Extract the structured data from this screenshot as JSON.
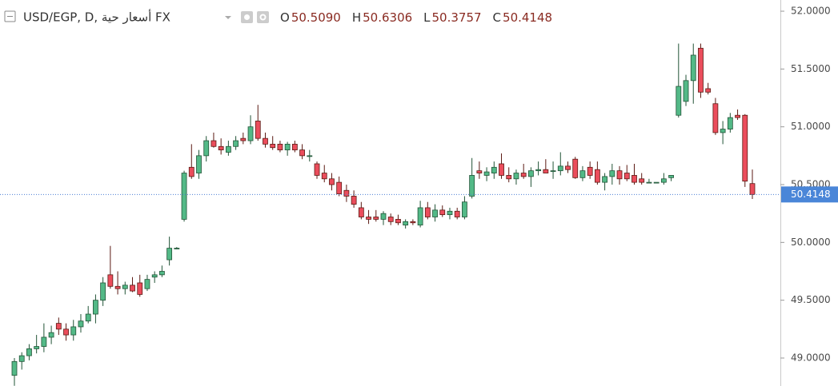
{
  "chart_data": {
    "type": "candlestick",
    "title": "USD/EGP, D, أسعار حية FX",
    "legend": {
      "open_label": "O",
      "open": "50.5090",
      "high_label": "H",
      "high": "50.6306",
      "low_label": "L",
      "low": "50.3757",
      "close_label": "C",
      "close": "50.4148"
    },
    "up_color": "#53b987",
    "down_color": "#eb4d5c",
    "up_border": "#225437",
    "down_border": "#5b1a13",
    "ylim": [
      48.758,
      52.097
    ],
    "yticks": [
      {
        "value": 49,
        "label": "49.0000"
      },
      {
        "value": 49.5,
        "label": "49.5000"
      },
      {
        "value": 50,
        "label": "50.0000"
      },
      {
        "value": 50.5,
        "label": "50.5000"
      },
      {
        "value": 51,
        "label": "51.0000"
      },
      {
        "value": 51.5,
        "label": "51.5000"
      },
      {
        "value": 52,
        "label": "52.0000"
      }
    ],
    "last_price": {
      "value": 50.4148,
      "label": "50.4148"
    },
    "ohlc": [
      [
        48.85,
        49.0,
        48.76,
        48.97
      ],
      [
        48.97,
        49.05,
        48.9,
        49.02
      ],
      [
        49.02,
        49.12,
        48.98,
        49.08
      ],
      [
        49.08,
        49.2,
        49.04,
        49.1
      ],
      [
        49.1,
        49.3,
        49.05,
        49.18
      ],
      [
        49.18,
        49.28,
        49.12,
        49.22
      ],
      [
        49.3,
        49.35,
        49.2,
        49.25
      ],
      [
        49.25,
        49.3,
        49.15,
        49.2
      ],
      [
        49.2,
        49.33,
        49.15,
        49.27
      ],
      [
        49.27,
        49.38,
        49.22,
        49.32
      ],
      [
        49.32,
        49.45,
        49.3,
        49.38
      ],
      [
        49.38,
        49.55,
        49.3,
        49.5
      ],
      [
        49.5,
        49.7,
        49.45,
        49.65
      ],
      [
        49.72,
        49.97,
        49.6,
        49.62
      ],
      [
        49.62,
        49.75,
        49.55,
        49.6
      ],
      [
        49.6,
        49.66,
        49.55,
        49.63
      ],
      [
        49.63,
        49.7,
        49.57,
        49.58
      ],
      [
        49.65,
        49.72,
        49.53,
        49.55
      ],
      [
        49.6,
        49.72,
        49.58,
        49.68
      ],
      [
        49.7,
        49.75,
        49.65,
        49.72
      ],
      [
        49.72,
        49.8,
        49.7,
        49.75
      ],
      [
        49.85,
        50.05,
        49.8,
        49.95
      ],
      [
        49.95,
        49.96,
        49.94,
        49.95
      ],
      [
        50.2,
        50.62,
        50.18,
        50.6
      ],
      [
        50.65,
        50.85,
        50.55,
        50.57
      ],
      [
        50.6,
        50.8,
        50.55,
        50.75
      ],
      [
        50.75,
        50.92,
        50.7,
        50.88
      ],
      [
        50.88,
        50.95,
        50.82,
        50.83
      ],
      [
        50.83,
        50.9,
        50.76,
        50.8
      ],
      [
        50.78,
        50.88,
        50.75,
        50.83
      ],
      [
        50.83,
        50.92,
        50.8,
        50.88
      ],
      [
        50.9,
        50.95,
        50.85,
        50.88
      ],
      [
        50.88,
        51.1,
        50.85,
        51.0
      ],
      [
        51.05,
        51.19,
        50.88,
        50.9
      ],
      [
        50.9,
        50.95,
        50.82,
        50.85
      ],
      [
        50.85,
        50.92,
        50.8,
        50.82
      ],
      [
        50.85,
        50.88,
        50.78,
        50.8
      ],
      [
        50.8,
        50.87,
        50.75,
        50.85
      ],
      [
        50.85,
        50.88,
        50.78,
        50.8
      ],
      [
        50.8,
        50.85,
        50.72,
        50.75
      ],
      [
        50.75,
        50.8,
        50.7,
        50.75
      ],
      [
        50.68,
        50.7,
        50.55,
        50.58
      ],
      [
        50.6,
        50.67,
        50.52,
        50.55
      ],
      [
        50.55,
        50.6,
        50.45,
        50.5
      ],
      [
        50.52,
        50.57,
        50.4,
        50.42
      ],
      [
        50.45,
        50.5,
        50.35,
        50.4
      ],
      [
        50.4,
        50.45,
        50.3,
        50.33
      ],
      [
        50.3,
        50.35,
        50.2,
        50.22
      ],
      [
        50.22,
        50.28,
        50.16,
        50.2
      ],
      [
        50.22,
        50.28,
        50.18,
        50.2
      ],
      [
        50.2,
        50.27,
        50.15,
        50.25
      ],
      [
        50.22,
        50.25,
        50.15,
        50.18
      ],
      [
        50.2,
        50.24,
        50.15,
        50.17
      ],
      [
        50.15,
        50.2,
        50.12,
        50.18
      ],
      [
        50.18,
        50.2,
        50.15,
        50.17
      ],
      [
        50.15,
        50.36,
        50.13,
        50.3
      ],
      [
        50.3,
        50.35,
        50.2,
        50.22
      ],
      [
        50.22,
        50.33,
        50.18,
        50.28
      ],
      [
        50.28,
        50.32,
        50.22,
        50.24
      ],
      [
        50.24,
        50.3,
        50.2,
        50.27
      ],
      [
        50.27,
        50.3,
        50.2,
        50.22
      ],
      [
        50.22,
        50.4,
        50.2,
        50.35
      ],
      [
        50.4,
        50.73,
        50.38,
        50.58
      ],
      [
        50.62,
        50.7,
        50.55,
        50.6
      ],
      [
        50.58,
        50.65,
        50.53,
        50.61
      ],
      [
        50.6,
        50.7,
        50.55,
        50.65
      ],
      [
        50.68,
        50.77,
        50.55,
        50.58
      ],
      [
        50.58,
        50.65,
        50.52,
        50.55
      ],
      [
        50.55,
        50.63,
        50.5,
        50.6
      ],
      [
        50.6,
        50.68,
        50.55,
        50.57
      ],
      [
        50.57,
        50.65,
        50.48,
        50.62
      ],
      [
        50.62,
        50.7,
        50.58,
        50.63
      ],
      [
        50.63,
        50.72,
        50.6,
        50.6
      ],
      [
        50.62,
        50.7,
        50.55,
        50.62
      ],
      [
        50.62,
        50.78,
        50.58,
        50.66
      ],
      [
        50.66,
        50.7,
        50.6,
        50.63
      ],
      [
        50.72,
        50.74,
        50.55,
        50.56
      ],
      [
        50.56,
        50.66,
        50.53,
        50.62
      ],
      [
        50.65,
        50.7,
        50.55,
        50.58
      ],
      [
        50.63,
        50.7,
        50.5,
        50.52
      ],
      [
        50.52,
        50.6,
        50.45,
        50.57
      ],
      [
        50.57,
        50.68,
        50.5,
        50.62
      ],
      [
        50.62,
        50.66,
        50.5,
        50.55
      ],
      [
        50.6,
        50.67,
        50.53,
        50.55
      ],
      [
        50.58,
        50.68,
        50.5,
        50.52
      ],
      [
        50.55,
        50.6,
        50.5,
        50.52
      ],
      [
        50.52,
        50.55,
        50.52,
        50.52
      ],
      [
        50.52,
        50.52,
        50.52,
        50.52
      ],
      [
        50.52,
        50.6,
        50.5,
        50.55
      ],
      [
        50.56,
        50.58,
        50.53,
        50.58
      ],
      [
        51.1,
        51.72,
        51.08,
        51.35
      ],
      [
        51.22,
        51.45,
        51.18,
        51.4
      ],
      [
        51.4,
        51.72,
        51.2,
        51.62
      ],
      [
        51.68,
        51.72,
        51.25,
        51.3
      ],
      [
        51.33,
        51.38,
        51.28,
        51.3
      ],
      [
        51.2,
        51.25,
        50.93,
        50.95
      ],
      [
        50.95,
        51.05,
        50.85,
        50.98
      ],
      [
        50.98,
        51.12,
        50.95,
        51.08
      ],
      [
        51.1,
        51.15,
        51.06,
        51.08
      ],
      [
        51.1,
        51.11,
        50.48,
        50.53
      ],
      [
        50.509,
        50.6306,
        50.3757,
        50.4148
      ]
    ]
  }
}
